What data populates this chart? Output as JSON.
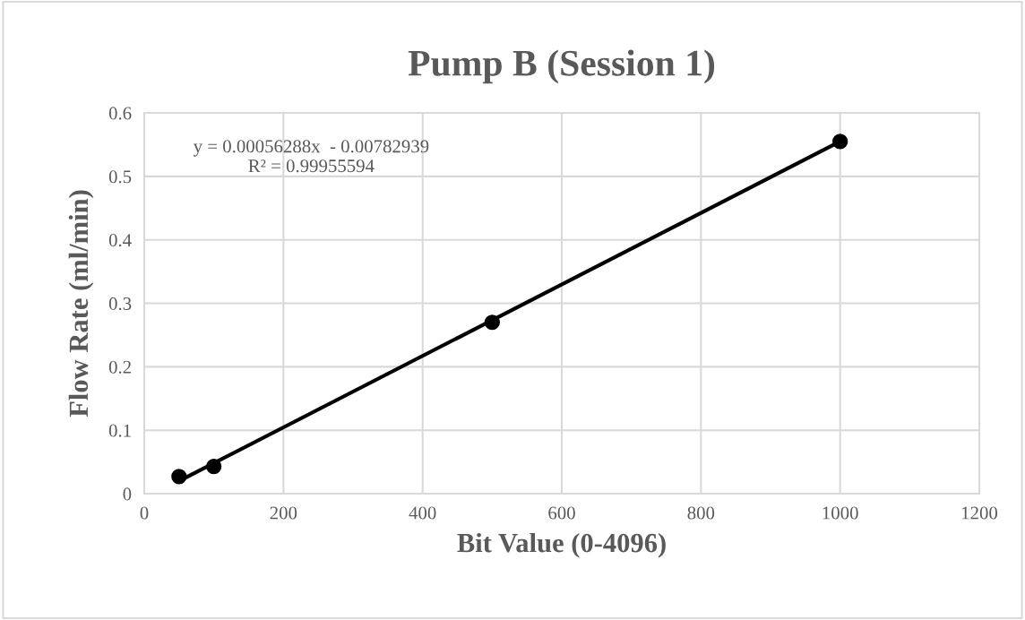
{
  "chart_data": {
    "type": "scatter",
    "title": "Pump B (Session 1)",
    "xlabel": "Bit Value (0-4096)",
    "ylabel": "Flow Rate (ml/min)",
    "series": [
      {
        "color": "#000000",
        "x": [
          50,
          100,
          500,
          1000
        ],
        "values": [
          0.027,
          0.043,
          0.27,
          0.555
        ],
        "marker": "circle"
      },
      {
        "type": "line",
        "color": "#000000",
        "x": [
          50,
          1000
        ],
        "values": [
          0.02,
          0.555
        ],
        "marker": "none",
        "line_style": "solid"
      }
    ],
    "annotations": [
      "y = 0.00056288x  - 0.00782939\nR² = 0.99955594"
    ],
    "xlim": [
      0,
      1200
    ],
    "xticks": [
      0,
      200,
      400,
      600,
      800,
      1000,
      1200
    ],
    "ylim": [
      0,
      0.6
    ],
    "yticks": [
      0,
      0.1,
      0.2,
      0.3,
      0.4,
      0.5,
      0.6
    ],
    "grid": true,
    "legend": false
  }
}
